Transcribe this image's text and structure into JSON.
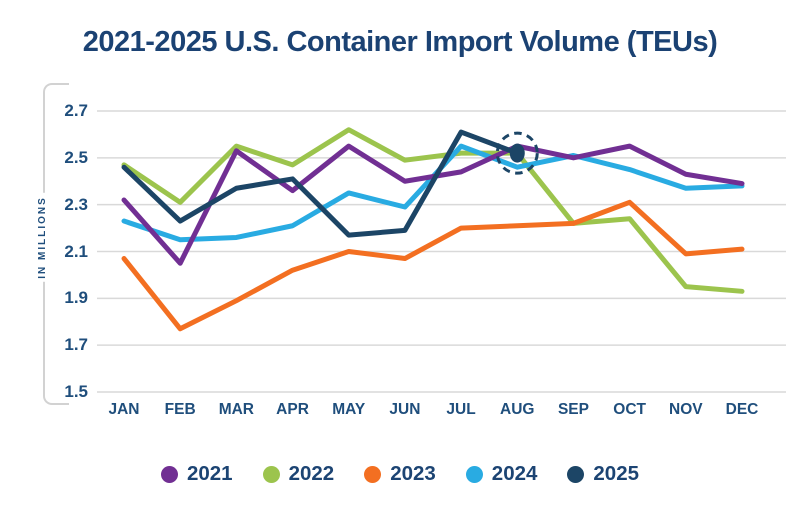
{
  "title": "2021-2025 U.S. Container Import Volume (TEUs)",
  "chart_data": {
    "type": "line",
    "title": "2021-2025 U.S. Container Import Volume (TEUs)",
    "categories": [
      "JAN",
      "FEB",
      "MAR",
      "APR",
      "MAY",
      "JUN",
      "JUL",
      "AUG",
      "SEP",
      "OCT",
      "NOV",
      "DEC"
    ],
    "y_axis_title": "IN MILLIONS",
    "ylim": [
      1.5,
      2.7
    ],
    "yticks": [
      2.7,
      2.5,
      2.3,
      2.1,
      1.9,
      1.7,
      1.5
    ],
    "grid": "horizontal",
    "legend_position": "bottom",
    "series": [
      {
        "name": "2021",
        "color": "#712F93",
        "values": [
          2.32,
          2.05,
          2.53,
          2.36,
          2.55,
          2.4,
          2.44,
          2.55,
          2.5,
          2.55,
          2.43,
          2.39
        ]
      },
      {
        "name": "2022",
        "color": "#9CC44D",
        "values": [
          2.47,
          2.31,
          2.55,
          2.47,
          2.62,
          2.49,
          2.52,
          2.52,
          2.22,
          2.24,
          1.95,
          1.93
        ]
      },
      {
        "name": "2023",
        "color": "#F36F21",
        "values": [
          2.07,
          1.77,
          1.89,
          2.02,
          2.1,
          2.07,
          2.2,
          2.21,
          2.22,
          2.31,
          2.09,
          2.11
        ]
      },
      {
        "name": "2024",
        "color": "#29ABE2",
        "values": [
          2.23,
          2.15,
          2.16,
          2.21,
          2.35,
          2.29,
          2.55,
          2.46,
          2.51,
          2.45,
          2.37,
          2.38
        ]
      },
      {
        "name": "2025",
        "color": "#1C4566",
        "values": [
          2.46,
          2.23,
          2.37,
          2.41,
          2.17,
          2.19,
          2.61,
          2.52
        ]
      }
    ],
    "annotation": {
      "type": "dashed-circle-highlight",
      "series": "2025",
      "category": "AUG",
      "value": 2.52
    }
  },
  "colors": {
    "title_text": "#1B4273",
    "axis_text": "#1F4E7C",
    "gridline": "#D9D9D9",
    "bracket": "#D2D2D2",
    "background": "#FFFFFF"
  }
}
